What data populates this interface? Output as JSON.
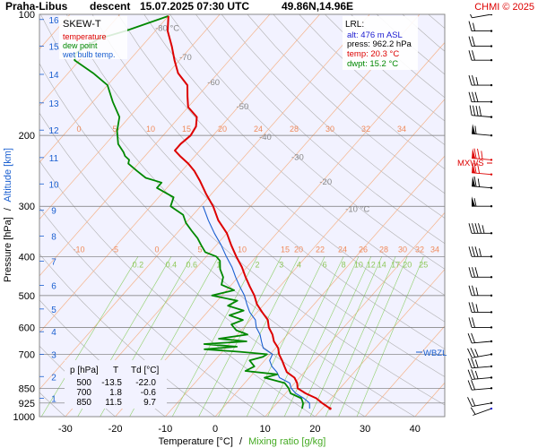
{
  "header": {
    "station": "Praha-Libus",
    "mode": "descent",
    "datetime": "15.07.2025 07:30 UTC",
    "location": "49.86N,14.96E",
    "copyright": "CHMI © 2025"
  },
  "legend": {
    "title": "SKEW-T",
    "items": [
      {
        "label": "temperature",
        "color": "#dd0000"
      },
      {
        "label": "dew point",
        "color": "#008800"
      },
      {
        "label": "wet bulb temp.",
        "color": "#1a5fd0"
      }
    ]
  },
  "lrl": {
    "title": "LRL:",
    "alt": "alt: 476 m ASL",
    "press": "press: 962.2 hPa",
    "temp": "temp: 20.3 °C",
    "dwpt": "dwpt: 15.2 °C"
  },
  "table": {
    "headers": [
      "p [hPa]",
      "T",
      "Td [°C]"
    ],
    "rows": [
      [
        "500",
        "-13.5",
        "-22.0"
      ],
      [
        "700",
        "1.8",
        "-0.6"
      ],
      [
        "850",
        "11.5",
        "9.7"
      ]
    ]
  },
  "markers": {
    "mxws": "MXWS",
    "wbzl": "WBZL"
  },
  "axes": {
    "ylabel_left": "Pressure [hPa]",
    "ylabel_sep": "/",
    "ylabel_right": "Altitude [km]",
    "xlabel": "Temperature [°C]",
    "xlabel_sep": "/",
    "xlabel_right": "Mixing ratio [g/kg]"
  },
  "colors": {
    "temperature": "#dd0000",
    "dewpoint": "#008800",
    "wetbulb": "#1a5fd0",
    "isotherm": "#f5b38a",
    "isotherm_label": "#f08a5a",
    "dry_adiabat": "#b0b0b0",
    "mixing_ratio": "#8fd06a",
    "altitude_label": "#1a5fd0",
    "mxws": "#dd0000",
    "wbzl": "#1a5fd0"
  },
  "chart_data": {
    "type": "skew-t",
    "pressure_ticks": [
      100,
      200,
      300,
      400,
      500,
      600,
      700,
      850,
      925,
      1000
    ],
    "pressure_tick_labels": [
      "100",
      "200",
      "300",
      "400",
      "500",
      "600",
      "700",
      "850",
      "925",
      "1000"
    ],
    "temperature_ticks": [
      -30,
      -20,
      -10,
      0,
      10,
      20,
      30,
      40
    ],
    "temperature_tick_labels": [
      "-30",
      "-20",
      "-10",
      "0",
      "10",
      "20",
      "30",
      "40"
    ],
    "altitude_ticks_km": [
      1,
      2,
      3,
      4,
      5,
      6,
      7,
      8,
      9,
      10,
      11,
      12,
      13,
      14,
      15,
      16
    ],
    "altitude_tick_labels": [
      "1",
      "2",
      "3",
      "4",
      "5",
      "6",
      "7",
      "8",
      "9",
      "10",
      "11",
      "12",
      "13",
      "14",
      "15",
      "16"
    ],
    "altitude_pressure_hpa": [
      900,
      795,
      700,
      615,
      540,
      472,
      411,
      356,
      307,
      264,
      227,
      194,
      166,
      141,
      120,
      103
    ],
    "isotherm_labels": [
      {
        "t": -80,
        "p": 110,
        "text": "-80 °C"
      },
      {
        "t": -70,
        "p": 130,
        "text": "-70"
      },
      {
        "t": -60,
        "p": 150,
        "text": "-60"
      },
      {
        "t": -50,
        "p": 172,
        "text": "-50"
      },
      {
        "t": -40,
        "p": 205,
        "text": "-40"
      },
      {
        "t": -30,
        "p": 230,
        "text": "-30"
      },
      {
        "t": -20,
        "p": 265,
        "text": "-20"
      },
      {
        "t": -10,
        "p": 310,
        "text": "-10 °C"
      }
    ],
    "isotherm_upper_labels": [
      "0",
      "5",
      "10",
      "15",
      "20",
      "24",
      "28",
      "30",
      "32",
      "34"
    ],
    "isotherm_lower_labels": [
      "-10",
      "-5",
      "0",
      "5",
      "10",
      "15",
      "20",
      "22",
      "24",
      "26",
      "28",
      "30",
      "32",
      "34"
    ],
    "mixing_ratio_labels": [
      "0.2",
      "0.4",
      "0.6",
      "1",
      "2",
      "3",
      "4",
      "6",
      "8",
      "10",
      "12",
      "14",
      "17",
      "20",
      "25"
    ],
    "mixing_ratio_values": [
      0.2,
      0.4,
      0.6,
      1,
      2,
      3,
      4,
      6,
      8,
      10,
      12,
      14,
      17,
      20,
      25
    ],
    "mxws_pressure": 230,
    "wbzl_pressure": 695,
    "temperature": [
      [
        955,
        21.6
      ],
      [
        925,
        19.0
      ],
      [
        900,
        17.0
      ],
      [
        875,
        14.0
      ],
      [
        850,
        11.5
      ],
      [
        825,
        10.5
      ],
      [
        800,
        9.0
      ],
      [
        775,
        6.5
      ],
      [
        750,
        5.0
      ],
      [
        725,
        3.5
      ],
      [
        700,
        1.8
      ],
      [
        675,
        0.5
      ],
      [
        650,
        -1.5
      ],
      [
        625,
        -3.0
      ],
      [
        600,
        -5.0
      ],
      [
        575,
        -6.5
      ],
      [
        550,
        -9.0
      ],
      [
        525,
        -11.5
      ],
      [
        500,
        -13.5
      ],
      [
        475,
        -16.0
      ],
      [
        450,
        -18.5
      ],
      [
        425,
        -21.0
      ],
      [
        400,
        -24.0
      ],
      [
        375,
        -27.0
      ],
      [
        350,
        -30.0
      ],
      [
        325,
        -34.0
      ],
      [
        300,
        -37.5
      ],
      [
        280,
        -41.0
      ],
      [
        260,
        -44.5
      ],
      [
        245,
        -47.5
      ],
      [
        235,
        -50.0
      ],
      [
        225,
        -53.0
      ],
      [
        218,
        -55.0
      ],
      [
        210,
        -55.0
      ],
      [
        200,
        -54.5
      ],
      [
        190,
        -55.0
      ],
      [
        180,
        -56.5
      ],
      [
        170,
        -60.0
      ],
      [
        160,
        -62.0
      ],
      [
        150,
        -64.0
      ],
      [
        140,
        -68.0
      ],
      [
        130,
        -71.0
      ],
      [
        120,
        -74.0
      ],
      [
        110,
        -77.5
      ],
      [
        101,
        -80.0
      ]
    ],
    "dewpoint": [
      [
        955,
        16.0
      ],
      [
        925,
        15.2
      ],
      [
        900,
        14.0
      ],
      [
        875,
        11.0
      ],
      [
        850,
        9.7
      ],
      [
        825,
        8.0
      ],
      [
        800,
        3.0
      ],
      [
        785,
        5.0
      ],
      [
        770,
        -2.0
      ],
      [
        750,
        -1.0
      ],
      [
        725,
        -3.0
      ],
      [
        710,
        -1.0
      ],
      [
        700,
        -0.6
      ],
      [
        690,
        -6.5
      ],
      [
        680,
        -14.0
      ],
      [
        670,
        -8.0
      ],
      [
        660,
        -15.0
      ],
      [
        650,
        -7.0
      ],
      [
        640,
        -13.0
      ],
      [
        625,
        -8.0
      ],
      [
        610,
        -11.0
      ],
      [
        600,
        -12.0
      ],
      [
        590,
        -13.0
      ],
      [
        575,
        -11.5
      ],
      [
        560,
        -15.0
      ],
      [
        545,
        -13.0
      ],
      [
        530,
        -17.0
      ],
      [
        515,
        -16.0
      ],
      [
        500,
        -22.0
      ],
      [
        485,
        -18.5
      ],
      [
        470,
        -22.0
      ],
      [
        450,
        -23.0
      ],
      [
        430,
        -25.0
      ],
      [
        410,
        -26.5
      ],
      [
        400,
        -28.0
      ],
      [
        390,
        -31.0
      ],
      [
        375,
        -33.0
      ],
      [
        360,
        -35.0
      ],
      [
        345,
        -37.5
      ],
      [
        330,
        -40.0
      ],
      [
        315,
        -42.0
      ],
      [
        300,
        -46.0
      ],
      [
        285,
        -47.0
      ],
      [
        270,
        -52.0
      ],
      [
        262,
        -52.0
      ],
      [
        255,
        -56.0
      ],
      [
        245,
        -59.0
      ],
      [
        235,
        -62.0
      ],
      [
        230,
        -62.5
      ],
      [
        225,
        -64.0
      ],
      [
        220,
        -65.0
      ],
      [
        210,
        -67.5
      ],
      [
        195,
        -70.0
      ],
      [
        180,
        -72.0
      ],
      [
        165,
        -76.0
      ],
      [
        150,
        -80.0
      ],
      [
        140,
        -85.0
      ],
      [
        130,
        -91.0
      ],
      [
        125,
        -92.0
      ],
      [
        115,
        -90.0
      ],
      [
        110,
        -86.0
      ],
      [
        101,
        -80.0
      ]
    ],
    "wetbulb": [
      [
        955,
        17.5
      ],
      [
        925,
        16.5
      ],
      [
        900,
        14.5
      ],
      [
        875,
        12.0
      ],
      [
        850,
        10.2
      ],
      [
        825,
        9.0
      ],
      [
        800,
        6.0
      ],
      [
        775,
        4.5
      ],
      [
        750,
        2.5
      ],
      [
        725,
        1.0
      ],
      [
        700,
        0.5
      ],
      [
        675,
        -2.5
      ],
      [
        650,
        -4.0
      ],
      [
        625,
        -5.5
      ],
      [
        600,
        -7.5
      ],
      [
        575,
        -9.0
      ],
      [
        550,
        -11.5
      ],
      [
        525,
        -13.5
      ],
      [
        500,
        -15.5
      ],
      [
        475,
        -18.0
      ],
      [
        450,
        -20.5
      ],
      [
        425,
        -23.0
      ],
      [
        400,
        -26.0
      ],
      [
        375,
        -29.0
      ],
      [
        350,
        -32.5
      ],
      [
        325,
        -36.0
      ],
      [
        300,
        -39.5
      ]
    ],
    "wind_levels": [
      {
        "p": 955,
        "dir": 250,
        "spd": 5
      },
      {
        "p": 925,
        "dir": 260,
        "spd": 15
      },
      {
        "p": 850,
        "dir": 265,
        "spd": 20
      },
      {
        "p": 800,
        "dir": 265,
        "spd": 25
      },
      {
        "p": 750,
        "dir": 265,
        "spd": 25
      },
      {
        "p": 700,
        "dir": 260,
        "spd": 25
      },
      {
        "p": 650,
        "dir": 265,
        "spd": 20
      },
      {
        "p": 600,
        "dir": 270,
        "spd": 20
      },
      {
        "p": 550,
        "dir": 270,
        "spd": 25
      },
      {
        "p": 500,
        "dir": 270,
        "spd": 25
      },
      {
        "p": 450,
        "dir": 270,
        "spd": 30
      },
      {
        "p": 400,
        "dir": 270,
        "spd": 35
      },
      {
        "p": 350,
        "dir": 270,
        "spd": 45
      },
      {
        "p": 300,
        "dir": 270,
        "spd": 55
      },
      {
        "p": 270,
        "dir": 275,
        "spd": 65
      },
      {
        "p": 250,
        "dir": 275,
        "spd": 70
      },
      {
        "p": 230,
        "dir": 275,
        "spd": 75
      },
      {
        "p": 200,
        "dir": 275,
        "spd": 55
      },
      {
        "p": 180,
        "dir": 275,
        "spd": 40
      },
      {
        "p": 165,
        "dir": 270,
        "spd": 30
      },
      {
        "p": 150,
        "dir": 270,
        "spd": 25
      },
      {
        "p": 130,
        "dir": 270,
        "spd": 20
      },
      {
        "p": 120,
        "dir": 270,
        "spd": 20
      },
      {
        "p": 110,
        "dir": 270,
        "spd": 15
      },
      {
        "p": 100,
        "dir": 260,
        "spd": 10
      }
    ]
  }
}
